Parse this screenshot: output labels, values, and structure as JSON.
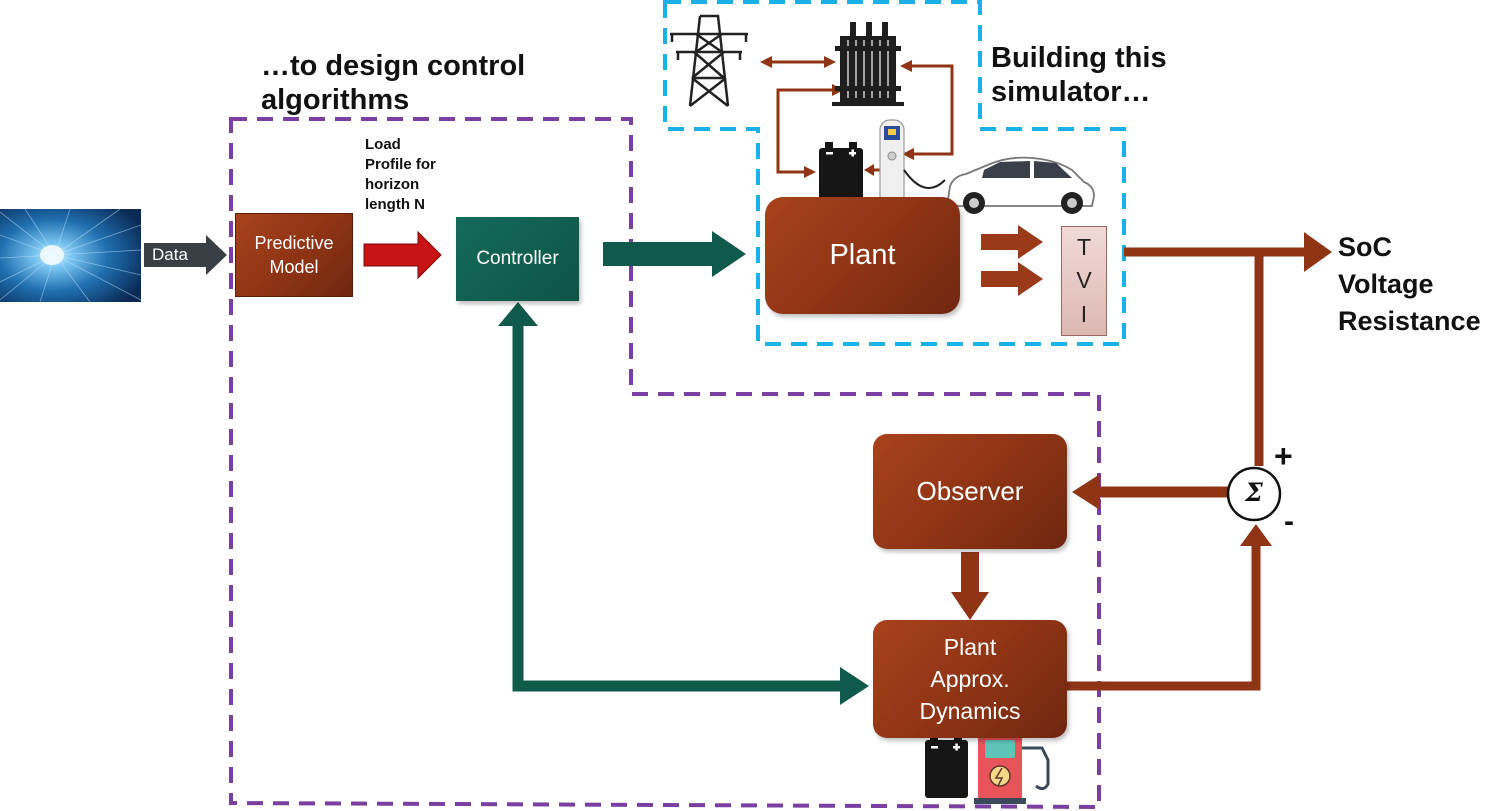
{
  "headings": {
    "design": [
      "…to design control",
      "algorithms"
    ],
    "simulator": [
      "Building this",
      "simulator…"
    ]
  },
  "labels": {
    "data_arrow": "Data",
    "load_profile": [
      "Load",
      "Profile for",
      "horizon",
      "length N"
    ]
  },
  "blocks": {
    "predictive_model": [
      "Predictive",
      "Model"
    ],
    "controller": "Controller",
    "plant": "Plant",
    "observer": "Observer",
    "plant_approx": [
      "Plant",
      "Approx.",
      "Dynamics"
    ]
  },
  "tvi": [
    "T",
    "V",
    "I"
  ],
  "summing": {
    "symbol": "Σ",
    "plus": "+",
    "minus": "-"
  },
  "outputs": [
    "SoC",
    "Voltage",
    "Resistance"
  ],
  "colors": {
    "brown": "#8f3516",
    "teal": "#0f5a4a",
    "red_arrow": "#c81414",
    "purple_dash": "#7a3fa0",
    "cyan_dash": "#1ab0e8"
  }
}
